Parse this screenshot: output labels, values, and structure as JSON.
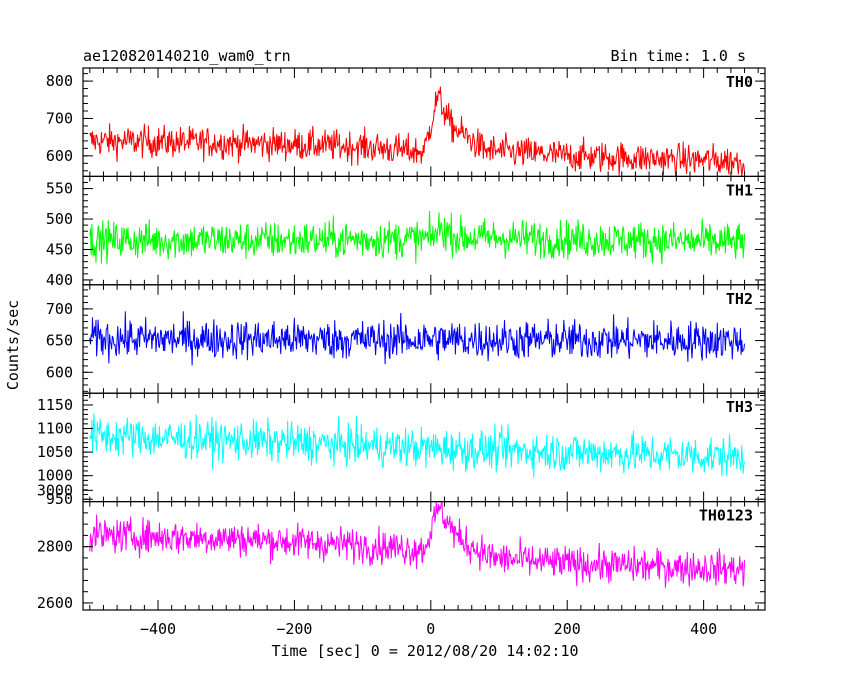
{
  "title_left": "ae120820140210_wam0_trn",
  "title_right": "Bin time: 1.0 s",
  "ylabel": "Counts/sec",
  "xlabel": "Time [sec] 0 = 2012/08/20 14:02:10",
  "chart_data": {
    "type": "line",
    "xlim": [
      -510,
      490
    ],
    "x_ticks": [
      -400,
      -200,
      0,
      200,
      400
    ],
    "x_tick_labels": [
      "−400",
      "−200",
      "0",
      "200",
      "400"
    ],
    "x_range_data": [
      -500,
      460
    ],
    "bin_time_s": 1.0,
    "grid": false,
    "panels": [
      {
        "name": "TH0",
        "color": "#ff0000",
        "ylim": [
          545,
          835
        ],
        "y_ticks": [
          600,
          700,
          800
        ],
        "y_tick_labels": [
          "600",
          "700",
          "800"
        ],
        "profile_x": [
          -500,
          -300,
          -100,
          -10,
          10,
          30,
          80,
          200,
          460
        ],
        "profile_y": [
          640,
          635,
          625,
          610,
          760,
          680,
          615,
          600,
          585
        ],
        "noise": 38
      },
      {
        "name": "TH1",
        "color": "#00ff00",
        "ylim": [
          392,
          570
        ],
        "y_ticks": [
          400,
          450,
          500,
          550
        ],
        "y_tick_labels": [
          "400",
          "450",
          "500",
          "550"
        ],
        "profile_x": [
          -500,
          -200,
          0,
          15,
          40,
          460
        ],
        "profile_y": [
          465,
          465,
          468,
          485,
          470,
          462
        ],
        "noise": 28
      },
      {
        "name": "TH2",
        "color": "#0000ff",
        "ylim": [
          567,
          738
        ],
        "y_ticks": [
          600,
          650,
          700
        ],
        "y_tick_labels": [
          "600",
          "650",
          "700"
        ],
        "profile_x": [
          -500,
          460
        ],
        "profile_y": [
          653,
          650
        ],
        "noise": 28
      },
      {
        "name": "TH3",
        "color": "#00ffff",
        "ylim": [
          945,
          1175
        ],
        "y_ticks": [
          950,
          1000,
          1050,
          1100,
          1150
        ],
        "y_tick_labels": [
          "950",
          "1000",
          "1050",
          "1100",
          "1150"
        ],
        "profile_x": [
          -500,
          -200,
          0,
          460
        ],
        "profile_y": [
          1085,
          1070,
          1058,
          1040
        ],
        "noise": 38
      },
      {
        "name": "TH0123",
        "color": "#ff00ff",
        "ylim": [
          2575,
          2960
        ],
        "y_ticks": [
          2600,
          2800,
          3000
        ],
        "y_tick_labels": [
          "2600",
          "2800",
          "3000"
        ],
        "profile_x": [
          -500,
          -300,
          -100,
          -10,
          12,
          40,
          90,
          200,
          460
        ],
        "profile_y": [
          2840,
          2830,
          2805,
          2790,
          2940,
          2830,
          2760,
          2740,
          2720
        ],
        "noise": 55
      }
    ]
  }
}
